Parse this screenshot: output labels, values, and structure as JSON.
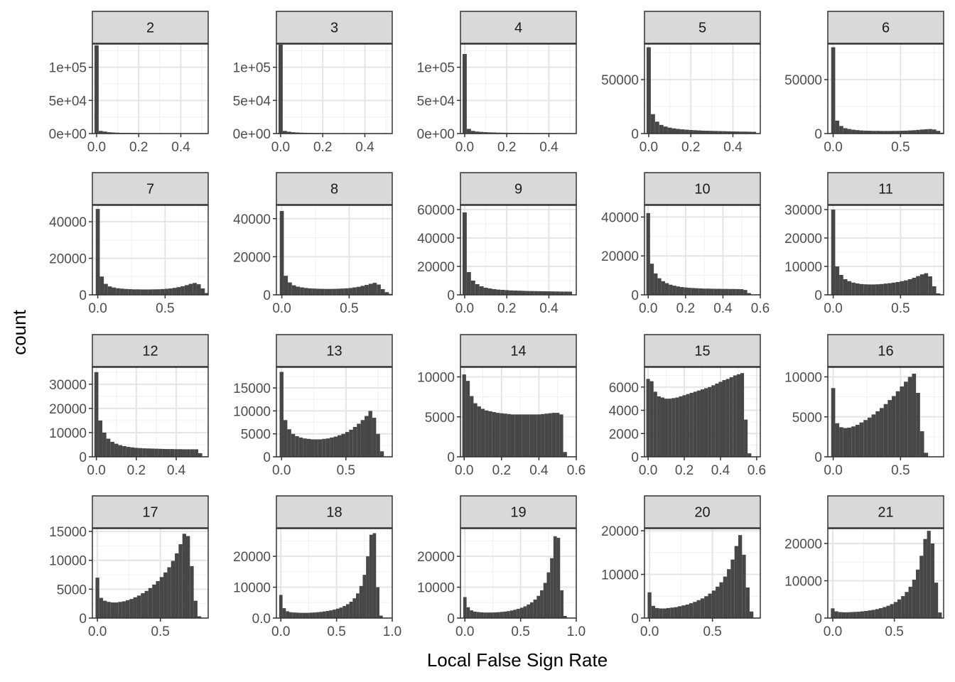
{
  "chart_data": {
    "type": "bar",
    "xlabel": "Local False Sign Rate",
    "ylabel": "count",
    "grid": true,
    "panels": [
      {
        "label": "2",
        "xlim": [
          -0.02,
          0.53
        ],
        "ylim": [
          0,
          135000
        ],
        "xticks": [
          0,
          0.2,
          0.4
        ],
        "yticks": [
          0,
          50000,
          100000
        ],
        "ytick_labels": [
          "0e+00",
          "5e+04",
          "1e+05"
        ],
        "bins": [
          0.0,
          0.02
        ],
        "values": [
          133000,
          4000,
          3000,
          2000,
          1600,
          1300,
          1100,
          1000,
          900,
          800,
          700,
          600,
          600,
          500,
          500,
          500,
          450,
          450,
          400,
          400,
          400,
          350,
          350,
          350,
          300,
          300
        ]
      },
      {
        "label": "3",
        "xlim": [
          -0.02,
          0.53
        ],
        "ylim": [
          0,
          135000
        ],
        "xticks": [
          0,
          0.2,
          0.4
        ],
        "yticks": [
          0,
          50000,
          100000
        ],
        "ytick_labels": [
          "0e+00",
          "5e+04",
          "1e+05"
        ],
        "bins": [
          0.0,
          0.02
        ],
        "values": [
          134000,
          4000,
          2800,
          2000,
          1600,
          1300,
          1100,
          1000,
          900,
          800,
          700,
          600,
          600,
          500,
          500,
          500,
          450,
          450,
          400,
          400,
          400,
          350,
          350,
          350,
          300,
          300
        ]
      },
      {
        "label": "4",
        "xlim": [
          -0.02,
          0.53
        ],
        "ylim": [
          0,
          135000
        ],
        "xticks": [
          0,
          0.2,
          0.4
        ],
        "yticks": [
          0,
          50000,
          100000
        ],
        "ytick_labels": [
          "0e+00",
          "5e+04",
          "1e+05"
        ],
        "bins": [
          0.0,
          0.02
        ],
        "values": [
          120000,
          7000,
          4000,
          3000,
          2500,
          2100,
          1800,
          1600,
          1400,
          1300,
          1200,
          1100,
          1000,
          1000,
          900,
          900,
          850,
          800,
          800,
          750,
          750,
          700,
          700,
          650,
          650,
          600
        ]
      },
      {
        "label": "5",
        "xlim": [
          -0.02,
          0.53
        ],
        "ylim": [
          0,
          83000
        ],
        "xticks": [
          0,
          0.2,
          0.4
        ],
        "yticks": [
          0,
          50000
        ],
        "ytick_labels": [
          "0",
          "50000"
        ],
        "bins": [
          0.0,
          0.02
        ],
        "values": [
          80000,
          18000,
          11000,
          8000,
          6500,
          5500,
          4800,
          4300,
          3900,
          3600,
          3300,
          3100,
          2900,
          2700,
          2600,
          2500,
          2400,
          2300,
          2200,
          2100,
          2000,
          1900,
          1800,
          1800,
          1700,
          1600
        ]
      },
      {
        "label": "6",
        "xlim": [
          -0.04,
          0.82
        ],
        "ylim": [
          0,
          83000
        ],
        "xticks": [
          0,
          0.5
        ],
        "yticks": [
          0,
          50000
        ],
        "ytick_labels": [
          "0",
          "50000"
        ],
        "bins": [
          0.0,
          0.03
        ],
        "values": [
          80000,
          12000,
          7000,
          5000,
          4200,
          3600,
          3200,
          2900,
          2700,
          2600,
          2500,
          2500,
          2400,
          2400,
          2400,
          2500,
          2500,
          2600,
          2700,
          2900,
          3100,
          3400,
          3700,
          4000,
          4200,
          3800,
          2500,
          800
        ]
      },
      {
        "label": "7",
        "xlim": [
          -0.04,
          0.82
        ],
        "ylim": [
          0,
          49000
        ],
        "xticks": [
          0,
          0.5
        ],
        "yticks": [
          0,
          20000,
          40000
        ],
        "ytick_labels": [
          "0",
          "20000",
          "40000"
        ],
        "bins": [
          0.0,
          0.03
        ],
        "values": [
          47000,
          10000,
          6000,
          4600,
          4000,
          3600,
          3400,
          3200,
          3100,
          3000,
          3000,
          2950,
          2950,
          2950,
          3000,
          3050,
          3150,
          3300,
          3500,
          3800,
          4200,
          4700,
          5300,
          6000,
          6500,
          5800,
          3500,
          1000
        ]
      },
      {
        "label": "8",
        "xlim": [
          -0.04,
          0.82
        ],
        "ylim": [
          0,
          47000
        ],
        "xticks": [
          0,
          0.5
        ],
        "yticks": [
          0,
          20000,
          40000
        ],
        "ytick_labels": [
          "0",
          "20000",
          "40000"
        ],
        "bins": [
          0.0,
          0.03
        ],
        "values": [
          44000,
          10000,
          6500,
          5000,
          4300,
          3900,
          3600,
          3400,
          3300,
          3200,
          3150,
          3100,
          3100,
          3150,
          3200,
          3300,
          3400,
          3600,
          3900,
          4200,
          4700,
          5200,
          5800,
          6300,
          5400,
          3000,
          1400,
          500
        ]
      },
      {
        "label": "9",
        "xlim": [
          -0.02,
          0.53
        ],
        "ylim": [
          0,
          63000
        ],
        "xticks": [
          0,
          0.2,
          0.4
        ],
        "yticks": [
          0,
          20000,
          40000,
          60000
        ],
        "ytick_labels": [
          "0",
          "20000",
          "40000",
          "60000"
        ],
        "bins": [
          0.0,
          0.02
        ],
        "values": [
          58000,
          16000,
          10000,
          7500,
          6000,
          5000,
          4500,
          4000,
          3700,
          3500,
          3300,
          3100,
          3000,
          2900,
          2800,
          2700,
          2650,
          2600,
          2550,
          2500,
          2450,
          2400,
          2350,
          2300,
          2300,
          2250
        ]
      },
      {
        "label": "10",
        "xlim": [
          -0.02,
          0.6
        ],
        "ylim": [
          0,
          46000
        ],
        "xticks": [
          0,
          0.2,
          0.4,
          0.6
        ],
        "yticks": [
          0,
          20000,
          40000
        ],
        "ytick_labels": [
          "0",
          "20000",
          "40000"
        ],
        "bins": [
          0.0,
          0.02
        ],
        "values": [
          42000,
          16000,
          11000,
          8500,
          7000,
          6000,
          5200,
          4700,
          4300,
          4000,
          3800,
          3600,
          3500,
          3400,
          3300,
          3200,
          3200,
          3150,
          3100,
          3100,
          3050,
          3050,
          3000,
          3000,
          2950,
          2900,
          2500,
          900
        ]
      },
      {
        "label": "11",
        "xlim": [
          -0.04,
          0.82
        ],
        "ylim": [
          0,
          31500
        ],
        "xticks": [
          0,
          0.5
        ],
        "yticks": [
          0,
          10000,
          20000,
          30000
        ],
        "ytick_labels": [
          "0",
          "10000",
          "20000",
          "30000"
        ],
        "bins": [
          0.0,
          0.03
        ],
        "values": [
          30000,
          10000,
          7000,
          5500,
          4800,
          4300,
          4000,
          3800,
          3700,
          3650,
          3650,
          3700,
          3800,
          3950,
          4100,
          4300,
          4500,
          4800,
          5100,
          5500,
          6000,
          6600,
          7200,
          7600,
          6500,
          3000,
          500
        ]
      },
      {
        "label": "12",
        "xlim": [
          -0.02,
          0.56
        ],
        "ylim": [
          0,
          37000
        ],
        "xticks": [
          0,
          0.2,
          0.4
        ],
        "yticks": [
          0,
          10000,
          20000,
          30000
        ],
        "ytick_labels": [
          "0",
          "10000",
          "20000",
          "30000"
        ],
        "bins": [
          0.0,
          0.02
        ],
        "values": [
          35000,
          15000,
          10000,
          7500,
          6200,
          5400,
          4800,
          4400,
          4100,
          3900,
          3700,
          3600,
          3500,
          3450,
          3400,
          3350,
          3300,
          3250,
          3200,
          3200,
          3150,
          3150,
          3100,
          3100,
          3100,
          3100,
          1500
        ]
      },
      {
        "label": "13",
        "xlim": [
          -0.04,
          0.86
        ],
        "ylim": [
          0,
          19500
        ],
        "xticks": [
          0,
          0.5
        ],
        "yticks": [
          0,
          5000,
          10000,
          15000
        ],
        "ytick_labels": [
          "0",
          "5000",
          "10000",
          "15000"
        ],
        "bins": [
          0.0,
          0.03
        ],
        "values": [
          18500,
          8000,
          6000,
          5000,
          4500,
          4200,
          4000,
          3900,
          3800,
          3800,
          3800,
          3900,
          4000,
          4200,
          4400,
          4700,
          5000,
          5400,
          5900,
          6500,
          7200,
          8000,
          8900,
          10000,
          8500,
          5000,
          1200
        ]
      },
      {
        "label": "14",
        "xlim": [
          -0.02,
          0.6
        ],
        "ylim": [
          0,
          11200
        ],
        "xticks": [
          0,
          0.2,
          0.4,
          0.6
        ],
        "yticks": [
          0,
          5000,
          10000
        ],
        "ytick_labels": [
          "0",
          "5000",
          "10000"
        ],
        "bins": [
          0.0,
          0.02
        ],
        "values": [
          10300,
          9500,
          7600,
          6700,
          6300,
          6000,
          5800,
          5700,
          5600,
          5500,
          5450,
          5400,
          5350,
          5300,
          5300,
          5300,
          5300,
          5300,
          5300,
          5300,
          5300,
          5350,
          5400,
          5450,
          5500,
          5500,
          5300,
          600
        ]
      },
      {
        "label": "15",
        "xlim": [
          -0.02,
          0.62
        ],
        "ylim": [
          0,
          7700
        ],
        "xticks": [
          0,
          0.2,
          0.4,
          0.6
        ],
        "yticks": [
          0,
          2000,
          4000,
          6000
        ],
        "ytick_labels": [
          "0",
          "2000",
          "4000",
          "6000"
        ],
        "bins": [
          0.0,
          0.02
        ],
        "values": [
          6700,
          6500,
          5600,
          5200,
          5100,
          5000,
          5000,
          5050,
          5100,
          5200,
          5300,
          5400,
          5500,
          5600,
          5700,
          5800,
          5900,
          6000,
          6150,
          6300,
          6450,
          6600,
          6700,
          6850,
          7000,
          7100,
          7200,
          3200,
          300
        ]
      },
      {
        "label": "16",
        "xlim": [
          -0.04,
          0.82
        ],
        "ylim": [
          0,
          11200
        ],
        "xticks": [
          0,
          0.5
        ],
        "yticks": [
          0,
          5000,
          10000
        ],
        "ytick_labels": [
          "0",
          "5000",
          "10000"
        ],
        "bins": [
          0.0,
          0.03
        ],
        "values": [
          8600,
          4200,
          3700,
          3600,
          3650,
          3800,
          4000,
          4300,
          4600,
          4900,
          5300,
          5700,
          6100,
          6600,
          7100,
          7600,
          8200,
          8800,
          9400,
          10000,
          10400,
          8000,
          3200,
          500
        ]
      },
      {
        "label": "17",
        "xlim": [
          -0.04,
          0.88
        ],
        "ylim": [
          0,
          15500
        ],
        "xticks": [
          0,
          0.5
        ],
        "yticks": [
          0,
          5000,
          10000,
          15000
        ],
        "ytick_labels": [
          "0",
          "5000",
          "10000",
          "15000"
        ],
        "bins": [
          0.0,
          0.03
        ],
        "values": [
          7000,
          3500,
          3000,
          2800,
          2700,
          2700,
          2800,
          2900,
          3100,
          3300,
          3600,
          3900,
          4300,
          4700,
          5200,
          5800,
          6400,
          7100,
          7900,
          8800,
          9900,
          11200,
          12800,
          14600,
          14200,
          9000,
          3000,
          300
        ]
      },
      {
        "label": "18",
        "xlim": [
          -0.04,
          1.0
        ],
        "ylim": [
          0,
          29000
        ],
        "xticks": [
          0,
          0.5,
          1
        ],
        "yticks": [
          0,
          10000,
          20000
        ],
        "ytick_labels": [
          "0.0",
          "10000",
          "20000"
        ],
        "bins": [
          0.0,
          0.03
        ],
        "values": [
          7500,
          3200,
          2200,
          1900,
          1800,
          1750,
          1700,
          1700,
          1700,
          1750,
          1800,
          1900,
          2000,
          2150,
          2300,
          2500,
          2750,
          3050,
          3400,
          3900,
          4500,
          5300,
          6400,
          8000,
          10400,
          14000,
          20000,
          27000,
          27500,
          10000,
          800
        ]
      },
      {
        "label": "19",
        "xlim": [
          -0.04,
          1.0
        ],
        "ylim": [
          0,
          29000
        ],
        "xticks": [
          0,
          0.5,
          1
        ],
        "yticks": [
          0,
          10000,
          20000
        ],
        "ytick_labels": [
          "0",
          "10000",
          "20000"
        ],
        "bins": [
          0.0,
          0.03
        ],
        "values": [
          6800,
          3500,
          2500,
          2100,
          1950,
          1850,
          1800,
          1800,
          1800,
          1850,
          1900,
          2000,
          2100,
          2250,
          2450,
          2700,
          3000,
          3350,
          3800,
          4400,
          5100,
          6000,
          7200,
          9000,
          11400,
          14800,
          19400,
          26500,
          26000,
          9000,
          700
        ]
      },
      {
        "label": "20",
        "xlim": [
          -0.04,
          0.88
        ],
        "ylim": [
          0,
          20500
        ],
        "xticks": [
          0,
          0.5
        ],
        "yticks": [
          0,
          10000,
          20000
        ],
        "ytick_labels": [
          "0",
          "10000",
          "20000"
        ],
        "bins": [
          0.0,
          0.03
        ],
        "values": [
          5900,
          2800,
          2300,
          2200,
          2200,
          2300,
          2400,
          2500,
          2700,
          2900,
          3100,
          3400,
          3700,
          4100,
          4500,
          5000,
          5600,
          6300,
          7200,
          8200,
          9500,
          11200,
          13400,
          16500,
          19000,
          14500,
          7000,
          1500
        ]
      },
      {
        "label": "21",
        "xlim": [
          -0.04,
          0.9
        ],
        "ylim": [
          0,
          24000
        ],
        "xticks": [
          0,
          0.5
        ],
        "yticks": [
          0,
          10000,
          20000
        ],
        "ytick_labels": [
          "0",
          "10000",
          "20000"
        ],
        "bins": [
          0.0,
          0.03
        ],
        "values": [
          2600,
          1800,
          1600,
          1550,
          1550,
          1600,
          1650,
          1700,
          1800,
          1900,
          2050,
          2200,
          2400,
          2650,
          2950,
          3300,
          3750,
          4300,
          5000,
          5900,
          7000,
          8400,
          10300,
          13000,
          16700,
          21200,
          23400,
          20000,
          9500,
          1500
        ]
      }
    ]
  }
}
